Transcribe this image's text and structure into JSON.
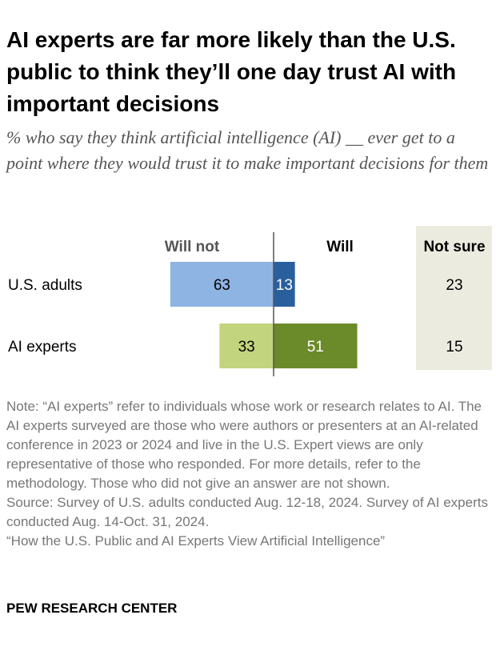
{
  "title": "AI experts are far more likely than the U.S. public to think they’ll one day trust AI with important decisions",
  "subtitle": "% who say they think artificial intelligence (AI) __ ever get to a point where they would trust it to make important decisions for them",
  "chart_data": {
    "type": "bar",
    "orientation": "horizontal-diverging",
    "columns": {
      "will_not": "Will not",
      "will": "Will",
      "not_sure": "Not sure"
    },
    "rows": [
      {
        "label": "U.S. adults",
        "will_not": 63,
        "will": 13,
        "not_sure": 23
      },
      {
        "label": "AI experts",
        "will_not": 33,
        "will": 51,
        "not_sure": 15
      }
    ],
    "colors": {
      "us_will_not": "#8eb4e3",
      "us_will": "#2a5f9e",
      "ai_will_not": "#c3d47e",
      "ai_will": "#6b8a2a",
      "not_sure_bg": "#ebebdf",
      "divider": "#555555"
    }
  },
  "note": [
    "Note: “AI experts” refer to individuals whose work or research relates to AI. The AI experts surveyed are those who were authors or presenters at an AI-related conference in 2023 or 2024 and live in the U.S. Expert views are only representative of those who responded. For more details, refer to the methodology. Those who did not give an answer are not shown.",
    "Source: Survey of U.S. adults conducted Aug. 12-18, 2024. Survey of AI experts conducted Aug. 14-Oct. 31, 2024.",
    "“How the U.S. Public and AI Experts View Artificial Intelligence”"
  ],
  "brand": "PEW RESEARCH CENTER"
}
